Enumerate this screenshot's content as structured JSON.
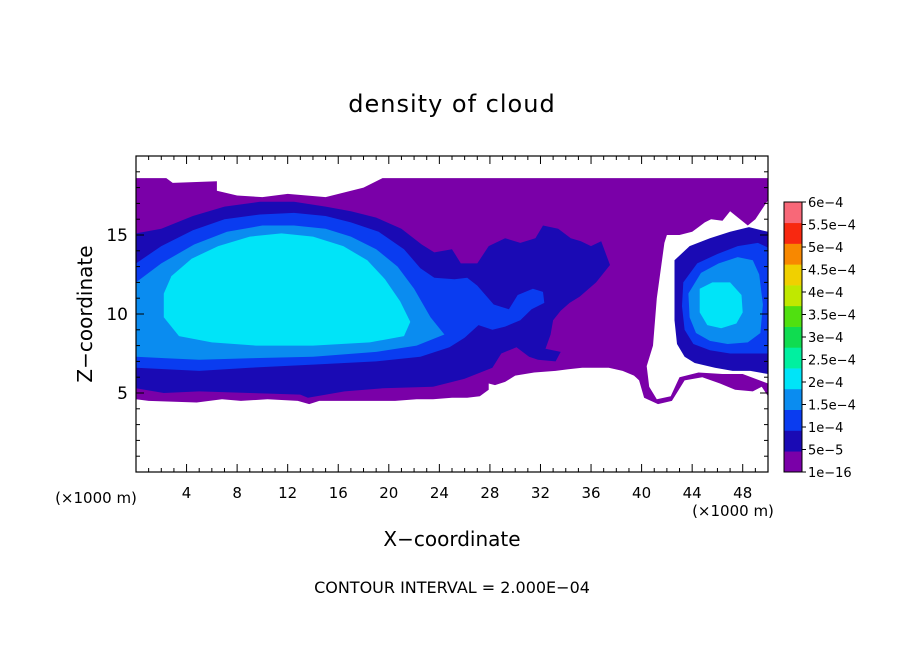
{
  "chart_data": {
    "type": "heatmap",
    "title": "density of cloud",
    "xlabel": "X−coordinate",
    "ylabel": "Z−coordinate",
    "x_unit_left": "(×1000 m)",
    "x_unit_right": "(×1000 m)",
    "xlim": [
      0,
      50
    ],
    "ylim": [
      0,
      20
    ],
    "x_ticks": [
      4,
      8,
      12,
      16,
      20,
      24,
      28,
      32,
      36,
      40,
      44,
      48
    ],
    "x_tick_labels": [
      "4",
      "8",
      "12",
      "16",
      "20",
      "24",
      "28",
      "32",
      "36",
      "40",
      "44",
      "48"
    ],
    "y_ticks": [
      5,
      10,
      15
    ],
    "y_tick_labels": [
      "5",
      "10",
      "15"
    ],
    "footer": "CONTOUR INTERVAL = 2.000E−04",
    "colorbar": {
      "labels": [
        "1e−16",
        "5e−5",
        "1e−4",
        "1.5e−4",
        "2e−4",
        "2.5e−4",
        "3e−4",
        "3.5e−4",
        "4e−4",
        "4.5e−4",
        "5e−4",
        "5.5e−4",
        "6e−4"
      ],
      "colors": [
        "#7a00a8",
        "#1a0ab4",
        "#0a3cf0",
        "#0a8cf0",
        "#00e4f8",
        "#00f0a0",
        "#10dc50",
        "#50e010",
        "#c0e800",
        "#f0d000",
        "#f88800",
        "#f82810",
        "#f86878"
      ]
    },
    "regions": [
      {
        "name": "cloud-envelope",
        "level": 0,
        "polygon": [
          [
            0,
            18.6
          ],
          [
            2.4,
            18.6
          ],
          [
            2.9,
            18.3
          ],
          [
            6.4,
            18.4
          ],
          [
            6.4,
            17.8
          ],
          [
            8,
            17.5
          ],
          [
            10,
            17.4
          ],
          [
            12,
            17.6
          ],
          [
            15,
            17.4
          ],
          [
            18,
            18
          ],
          [
            19.5,
            18.6
          ],
          [
            50,
            18.6
          ],
          [
            50,
            17.2
          ],
          [
            49,
            16
          ],
          [
            48.4,
            15.6
          ],
          [
            47,
            16.5
          ],
          [
            46.4,
            15.9
          ],
          [
            45.5,
            16
          ],
          [
            45,
            15.8
          ],
          [
            44.5,
            15.5
          ],
          [
            44,
            15.2
          ],
          [
            43,
            15
          ],
          [
            42,
            15
          ],
          [
            41.8,
            14.5
          ],
          [
            41.2,
            11
          ],
          [
            40.9,
            8
          ],
          [
            40.4,
            6.7
          ],
          [
            40.6,
            5.4
          ],
          [
            41.2,
            4.6
          ],
          [
            42.3,
            4.8
          ],
          [
            43,
            6
          ],
          [
            44.5,
            6.3
          ],
          [
            46.4,
            6.2
          ],
          [
            48,
            6.2
          ],
          [
            50,
            5.6
          ],
          [
            50,
            4.8
          ],
          [
            49.5,
            5.4
          ],
          [
            48.8,
            5.1
          ],
          [
            47.4,
            5.2
          ],
          [
            46.2,
            5.6
          ],
          [
            44.8,
            6
          ],
          [
            43.4,
            5.8
          ],
          [
            42.4,
            4.5
          ],
          [
            41.3,
            4.3
          ],
          [
            40.2,
            4.7
          ],
          [
            39.8,
            5.8
          ],
          [
            39.4,
            6.1
          ],
          [
            38.5,
            6.4
          ],
          [
            37.4,
            6.6
          ],
          [
            35.3,
            6.6
          ],
          [
            34.2,
            6.5
          ],
          [
            33.2,
            6.4
          ],
          [
            31.5,
            6.3
          ],
          [
            30,
            6.1
          ],
          [
            29.2,
            5.7
          ],
          [
            28.4,
            5.5
          ],
          [
            27.9,
            5.6
          ],
          [
            27.9,
            5.2
          ],
          [
            27.2,
            4.8
          ],
          [
            26.2,
            4.7
          ],
          [
            25,
            4.7
          ],
          [
            23.5,
            4.6
          ],
          [
            22.2,
            4.6
          ],
          [
            20.5,
            4.5
          ],
          [
            17.5,
            4.5
          ],
          [
            14.5,
            4.5
          ],
          [
            13.7,
            4.3
          ],
          [
            12.8,
            4.5
          ],
          [
            10.4,
            4.6
          ],
          [
            8.3,
            4.5
          ],
          [
            6.8,
            4.6
          ],
          [
            4.8,
            4.4
          ],
          [
            1,
            4.5
          ],
          [
            0,
            4.6
          ]
        ]
      },
      {
        "name": "outer-blue",
        "level": 1,
        "polygon": [
          [
            0,
            15.1
          ],
          [
            2,
            15.4
          ],
          [
            4.5,
            16.2
          ],
          [
            7,
            16.8
          ],
          [
            9.8,
            17.1
          ],
          [
            12.5,
            17.1
          ],
          [
            15,
            16.8
          ],
          [
            17,
            16.5
          ],
          [
            19,
            16.1
          ],
          [
            21,
            15.4
          ],
          [
            22.6,
            14.4
          ],
          [
            23.6,
            13.9
          ],
          [
            25,
            14.1
          ],
          [
            25.7,
            13.2
          ],
          [
            27,
            13.2
          ],
          [
            27.9,
            14.3
          ],
          [
            29.2,
            14.8
          ],
          [
            30.4,
            14.5
          ],
          [
            31.6,
            14.8
          ],
          [
            32.2,
            15.6
          ],
          [
            33.4,
            15.4
          ],
          [
            34.4,
            14.8
          ],
          [
            35.2,
            14.6
          ],
          [
            36,
            14.3
          ],
          [
            36.8,
            14.6
          ],
          [
            37.5,
            13.1
          ],
          [
            36.4,
            12
          ],
          [
            35.1,
            11.1
          ],
          [
            34.3,
            10.7
          ],
          [
            33.6,
            10.2
          ],
          [
            33,
            9.6
          ],
          [
            32.8,
            8.7
          ],
          [
            32.4,
            7.8
          ],
          [
            33.6,
            7.6
          ],
          [
            33.2,
            7
          ],
          [
            31.8,
            7.1
          ],
          [
            31.1,
            7.3
          ],
          [
            30.1,
            7.9
          ],
          [
            28.9,
            7.5
          ],
          [
            28.2,
            6.6
          ],
          [
            26,
            5.9
          ],
          [
            23.5,
            5.4
          ],
          [
            19.5,
            5.3
          ],
          [
            16.5,
            5.1
          ],
          [
            13.6,
            4.7
          ],
          [
            13,
            4.9
          ],
          [
            9,
            5
          ],
          [
            5,
            5.1
          ],
          [
            2.2,
            5
          ],
          [
            0,
            5.3
          ]
        ]
      },
      {
        "name": "right-column-blue",
        "level": 1,
        "polygon": [
          [
            42.6,
            13.4
          ],
          [
            43.8,
            14.3
          ],
          [
            45.4,
            14.8
          ],
          [
            47,
            15.2
          ],
          [
            48.5,
            15.5
          ],
          [
            50,
            15.2
          ],
          [
            50,
            6.2
          ],
          [
            48.6,
            6.4
          ],
          [
            47.2,
            6.4
          ],
          [
            45.8,
            6.6
          ],
          [
            44.2,
            6.9
          ],
          [
            43.4,
            7.3
          ],
          [
            42.8,
            8.1
          ],
          [
            42.6,
            9.6
          ]
        ]
      },
      {
        "name": "mid-blue-core",
        "level": 2,
        "polygon": [
          [
            0,
            13.2
          ],
          [
            2,
            14.3
          ],
          [
            4.5,
            15.3
          ],
          [
            7,
            16
          ],
          [
            9.8,
            16.3
          ],
          [
            12.5,
            16.4
          ],
          [
            15,
            16.2
          ],
          [
            17,
            15.8
          ],
          [
            19.2,
            15.2
          ],
          [
            21.2,
            14.1
          ],
          [
            22.5,
            12.9
          ],
          [
            23.6,
            12.3
          ],
          [
            25.2,
            12.2
          ],
          [
            26.2,
            12.3
          ],
          [
            27,
            11.8
          ],
          [
            28.3,
            10.6
          ],
          [
            29.5,
            10.3
          ],
          [
            30.2,
            11.2
          ],
          [
            31.4,
            11.6
          ],
          [
            32.2,
            11.4
          ],
          [
            32.3,
            10.7
          ],
          [
            31.3,
            10.3
          ],
          [
            30.4,
            9.6
          ],
          [
            29.2,
            9.2
          ],
          [
            28.2,
            9
          ],
          [
            27.1,
            9.3
          ],
          [
            26,
            8.5
          ],
          [
            24.8,
            7.9
          ],
          [
            22.5,
            7.3
          ],
          [
            19,
            7
          ],
          [
            14,
            6.8
          ],
          [
            9,
            6.6
          ],
          [
            5,
            6.4
          ],
          [
            2.4,
            6.5
          ],
          [
            0,
            6.6
          ]
        ]
      },
      {
        "name": "right-column-mid",
        "level": 2,
        "polygon": [
          [
            43.3,
            12
          ],
          [
            44.4,
            13.2
          ],
          [
            46,
            13.8
          ],
          [
            47.6,
            14.3
          ],
          [
            49.2,
            14.5
          ],
          [
            50,
            14.2
          ],
          [
            50,
            7.5
          ],
          [
            48.6,
            7.5
          ],
          [
            47,
            7.5
          ],
          [
            45.4,
            7.7
          ],
          [
            44.1,
            8.1
          ],
          [
            43.4,
            9
          ],
          [
            43.2,
            10.5
          ]
        ]
      },
      {
        "name": "lighter-blue",
        "level": 3,
        "polygon": [
          [
            0,
            12
          ],
          [
            2,
            13.2
          ],
          [
            4.6,
            14.4
          ],
          [
            7.2,
            15.2
          ],
          [
            10,
            15.6
          ],
          [
            12.5,
            15.6
          ],
          [
            15,
            15.4
          ],
          [
            17,
            14.9
          ],
          [
            19,
            14.1
          ],
          [
            20.7,
            13
          ],
          [
            22,
            11.6
          ],
          [
            23.3,
            9.8
          ],
          [
            24.4,
            8.7
          ],
          [
            22.2,
            8
          ],
          [
            19,
            7.6
          ],
          [
            14,
            7.3
          ],
          [
            9,
            7.2
          ],
          [
            5,
            7.1
          ],
          [
            2.4,
            7.2
          ],
          [
            0,
            7.3
          ]
        ]
      },
      {
        "name": "right-column-light",
        "level": 3,
        "polygon": [
          [
            43.7,
            11.3
          ],
          [
            44.7,
            12.6
          ],
          [
            46.1,
            13.2
          ],
          [
            47.6,
            13.6
          ],
          [
            48.8,
            13.4
          ],
          [
            49.3,
            12.5
          ],
          [
            49.6,
            10.6
          ],
          [
            49.4,
            8.8
          ],
          [
            48.4,
            8.2
          ],
          [
            46.8,
            8.1
          ],
          [
            45.4,
            8.3
          ],
          [
            44.3,
            8.8
          ],
          [
            43.8,
            9.8
          ]
        ]
      },
      {
        "name": "cyan-core",
        "level": 4,
        "polygon": [
          [
            2.8,
            12.4
          ],
          [
            4.4,
            13.5
          ],
          [
            6.5,
            14.3
          ],
          [
            9,
            14.9
          ],
          [
            11.5,
            15.1
          ],
          [
            14,
            14.9
          ],
          [
            16.4,
            14.3
          ],
          [
            18.3,
            13.4
          ],
          [
            19.7,
            12.2
          ],
          [
            20.9,
            10.8
          ],
          [
            21.7,
            9.5
          ],
          [
            21.2,
            8.6
          ],
          [
            18.5,
            8.2
          ],
          [
            14,
            8
          ],
          [
            9.5,
            8
          ],
          [
            6,
            8.2
          ],
          [
            3.4,
            8.6
          ],
          [
            2.2,
            9.8
          ],
          [
            2.2,
            11.3
          ]
        ]
      },
      {
        "name": "right-column-core",
        "level": 4,
        "polygon": [
          [
            44.6,
            11.6
          ],
          [
            45.6,
            12
          ],
          [
            47,
            12
          ],
          [
            47.9,
            11.2
          ],
          [
            48,
            10.1
          ],
          [
            47.5,
            9.4
          ],
          [
            46.3,
            9.1
          ],
          [
            45.2,
            9.3
          ],
          [
            44.6,
            10.1
          ]
        ]
      }
    ]
  }
}
